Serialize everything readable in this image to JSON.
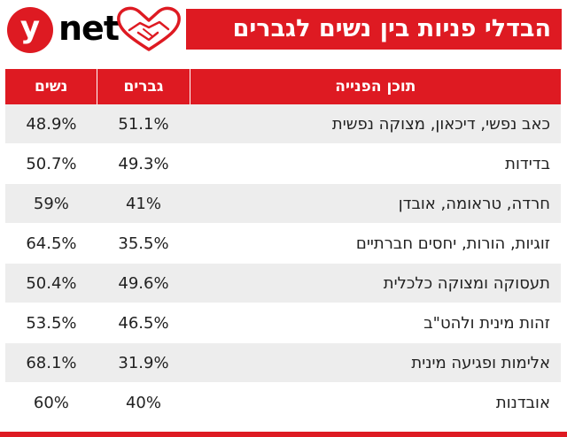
{
  "brand": {
    "mark": "y",
    "name": "net"
  },
  "title": "הבדלי פניות בין נשים לגברים",
  "colors": {
    "accent": "#de1a22",
    "shaded_row": "#ededed"
  },
  "header_icon": "hearts-handshake-icon",
  "table": {
    "headers": {
      "topic": "תוכן הפנייה",
      "men": "גברים",
      "women": "נשים"
    },
    "rows": [
      {
        "topic": "כאב נפשי, דיכאון, מצוקה נפשית",
        "men": "51.1%",
        "women": "48.9%"
      },
      {
        "topic": "בדידות",
        "men": "49.3%",
        "women": "50.7%"
      },
      {
        "topic": "חרדה, טראומה, אובדן",
        "men": "41%",
        "women": "59%"
      },
      {
        "topic": "זוגיות, הורות, יחסים חברתיים",
        "men": "35.5%",
        "women": "64.5%"
      },
      {
        "topic": "תעסוקה ומצוקה כלכלית",
        "men": "49.6%",
        "women": "50.4%"
      },
      {
        "topic": "זהות מינית ולהט\"ב",
        "men": "46.5%",
        "women": "53.5%"
      },
      {
        "topic": "אלימות ופגיעה מינית",
        "men": "31.9%",
        "women": "68.1%"
      },
      {
        "topic": "אובדנות",
        "men": "40%",
        "women": "60%"
      }
    ]
  }
}
